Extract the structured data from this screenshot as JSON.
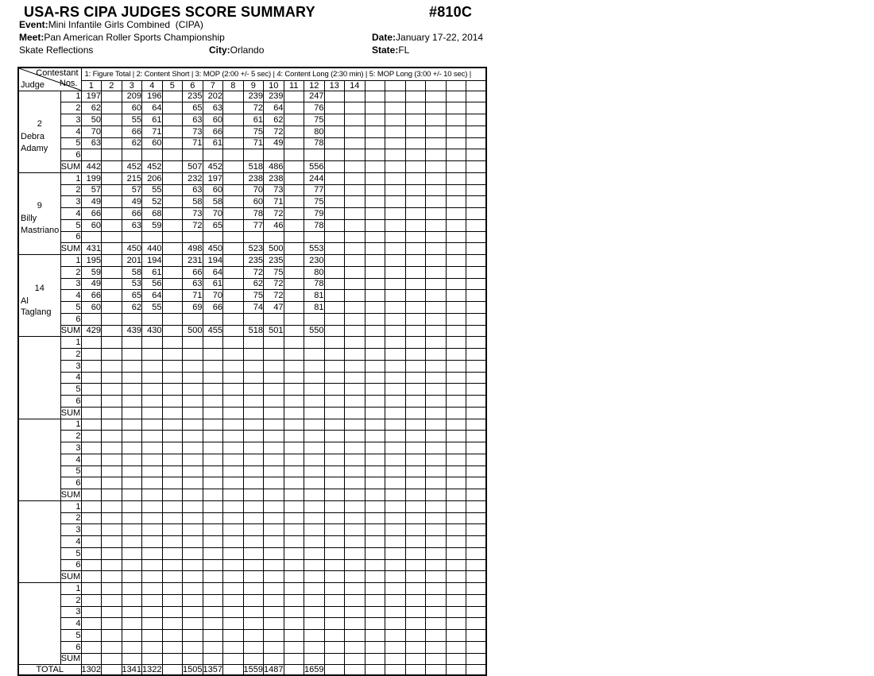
{
  "header": {
    "title": "USA-RS CIPA JUDGES SCORE SUMMARY",
    "doc_number": "#810C",
    "event_label": "Event:",
    "event_value": "Mini Infantile Girls Combined  (CIPA)",
    "meet_label": "Meet:",
    "meet_value": "Pan American Roller Sports Championship",
    "venue": "Skate Reflections",
    "city_label": "City:",
    "city_value": "Orlando",
    "date_label": "Date:",
    "date_value": "January 17-22, 2014",
    "state_label": "State:",
    "state_value": "FL"
  },
  "table": {
    "corner": {
      "contestant": "Contestant",
      "nos": "Nos.",
      "judge": "Judge"
    },
    "legend": "1: Figure Total | 2: Content Short | 3: MOP (2:00 +/- 5 sec) | 4: Content Long (2:30 min) | 5: MOP Long (3:00 +/- 10 sec) |",
    "column_labels": [
      "1",
      "2",
      "3",
      "4",
      "5",
      "6",
      "7",
      "8",
      "9",
      "10",
      "11",
      "12",
      "13",
      "14",
      "",
      "",
      "",
      "",
      "",
      ""
    ],
    "row_labels": [
      "1",
      "2",
      "3",
      "4",
      "5",
      "6",
      "SUM"
    ],
    "judge_blocks": [
      {
        "judge_number": "2",
        "judge_name_lines": [
          "Debra",
          "Adamy"
        ],
        "rows": [
          {
            "1": "197",
            "3": "209",
            "4": "196",
            "6": "235",
            "7": "202",
            "9": "239",
            "10": "239",
            "12": "247"
          },
          {
            "1": "62",
            "3": "60",
            "4": "64",
            "6": "65",
            "7": "63",
            "9": "72",
            "10": "64",
            "12": "76"
          },
          {
            "1": "50",
            "3": "55",
            "4": "61",
            "6": "63",
            "7": "60",
            "9": "61",
            "10": "62",
            "12": "75"
          },
          {
            "1": "70",
            "3": "66",
            "4": "71",
            "6": "73",
            "7": "66",
            "9": "75",
            "10": "72",
            "12": "80"
          },
          {
            "1": "63",
            "3": "62",
            "4": "60",
            "6": "71",
            "7": "61",
            "9": "71",
            "10": "49",
            "12": "78"
          },
          {},
          {
            "1": "442",
            "3": "452",
            "4": "452",
            "6": "507",
            "7": "452",
            "9": "518",
            "10": "486",
            "12": "556"
          }
        ]
      },
      {
        "judge_number": "9",
        "judge_name_lines": [
          "Billy",
          "Mastriano"
        ],
        "rows": [
          {
            "1": "199",
            "3": "215",
            "4": "206",
            "6": "232",
            "7": "197",
            "9": "238",
            "10": "238",
            "12": "244"
          },
          {
            "1": "57",
            "3": "57",
            "4": "55",
            "6": "63",
            "7": "60",
            "9": "70",
            "10": "73",
            "12": "77"
          },
          {
            "1": "49",
            "3": "49",
            "4": "52",
            "6": "58",
            "7": "58",
            "9": "60",
            "10": "71",
            "12": "75"
          },
          {
            "1": "66",
            "3": "66",
            "4": "68",
            "6": "73",
            "7": "70",
            "9": "78",
            "10": "72",
            "12": "79"
          },
          {
            "1": "60",
            "3": "63",
            "4": "59",
            "6": "72",
            "7": "65",
            "9": "77",
            "10": "46",
            "12": "78"
          },
          {},
          {
            "1": "431",
            "3": "450",
            "4": "440",
            "6": "498",
            "7": "450",
            "9": "523",
            "10": "500",
            "12": "553"
          }
        ]
      },
      {
        "judge_number": "14",
        "judge_name_lines": [
          "Al",
          "Taglang"
        ],
        "rows": [
          {
            "1": "195",
            "3": "201",
            "4": "194",
            "6": "231",
            "7": "194",
            "9": "235",
            "10": "235",
            "12": "230"
          },
          {
            "1": "59",
            "3": "58",
            "4": "61",
            "6": "66",
            "7": "64",
            "9": "72",
            "10": "75",
            "12": "80"
          },
          {
            "1": "49",
            "3": "53",
            "4": "56",
            "6": "63",
            "7": "61",
            "9": "62",
            "10": "72",
            "12": "78"
          },
          {
            "1": "66",
            "3": "65",
            "4": "64",
            "6": "71",
            "7": "70",
            "9": "75",
            "10": "72",
            "12": "81"
          },
          {
            "1": "60",
            "3": "62",
            "4": "55",
            "6": "69",
            "7": "66",
            "9": "74",
            "10": "47",
            "12": "81"
          },
          {},
          {
            "1": "429",
            "3": "439",
            "4": "430",
            "6": "500",
            "7": "455",
            "9": "518",
            "10": "501",
            "12": "550"
          }
        ]
      },
      {
        "judge_number": "",
        "judge_name_lines": [],
        "rows": [
          {},
          {},
          {},
          {},
          {},
          {},
          {}
        ]
      },
      {
        "judge_number": "",
        "judge_name_lines": [],
        "rows": [
          {},
          {},
          {},
          {},
          {},
          {},
          {}
        ]
      },
      {
        "judge_number": "",
        "judge_name_lines": [],
        "rows": [
          {},
          {},
          {},
          {},
          {},
          {},
          {}
        ]
      },
      {
        "judge_number": "",
        "judge_name_lines": [],
        "rows": [
          {},
          {},
          {},
          {},
          {},
          {},
          {}
        ]
      }
    ],
    "total_label": "TOTAL",
    "total_values": {
      "1": "1302",
      "3": "1341",
      "4": "1322",
      "6": "1505",
      "7": "1357",
      "9": "1559",
      "10": "1487",
      "12": "1659"
    }
  },
  "colors": {
    "ink": "#000000",
    "paper": "#ffffff"
  }
}
